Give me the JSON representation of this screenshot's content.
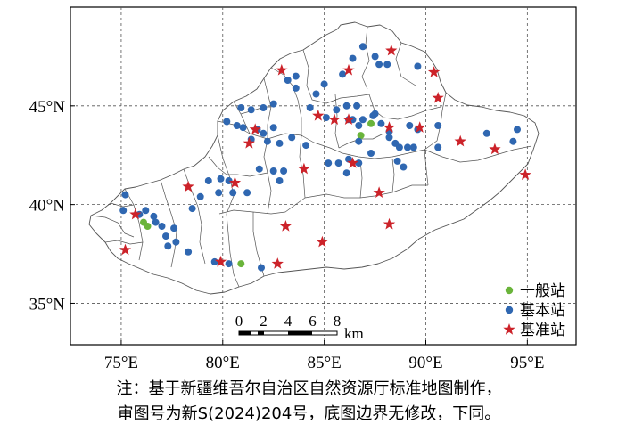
{
  "legend": {
    "general": {
      "label": "一般站",
      "color": "#6ab43a"
    },
    "basic": {
      "label": "基本站",
      "color": "#2f67b1"
    },
    "reference": {
      "label": "基准站",
      "color": "#cc2229"
    }
  },
  "scale_bar": {
    "ticks": [
      "0",
      "2",
      "4",
      "6",
      "8"
    ],
    "unit": "km"
  },
  "x_ticks": [
    {
      "value": 75,
      "label": "75°E"
    },
    {
      "value": 80,
      "label": "80°E"
    },
    {
      "value": 85,
      "label": "85°E"
    },
    {
      "value": 90,
      "label": "90°E"
    },
    {
      "value": 95,
      "label": "95°E"
    }
  ],
  "y_ticks": [
    {
      "value": 45,
      "label": "45°N"
    },
    {
      "value": 40,
      "label": "40°N"
    },
    {
      "value": 35,
      "label": "35°N"
    }
  ],
  "extent": {
    "lon": [
      72.5,
      97.4
    ],
    "lat": [
      32.9,
      50.0
    ]
  },
  "note": {
    "line1": "注：基于新疆维吾尔自治区自然资源厅标准地图制作，",
    "line2": "审图号为新S(2024)204号，底图边界无修改，下同。"
  },
  "stations": {
    "general": [
      [
        76.1,
        39.1
      ],
      [
        76.3,
        38.9
      ],
      [
        80.9,
        37.0
      ],
      [
        86.8,
        43.5
      ],
      [
        87.3,
        44.1
      ]
    ],
    "basic": [
      [
        75.2,
        40.5
      ],
      [
        75.1,
        39.7
      ],
      [
        75.9,
        39.5
      ],
      [
        76.2,
        39.7
      ],
      [
        76.6,
        39.4
      ],
      [
        76.7,
        39.1
      ],
      [
        77.0,
        38.9
      ],
      [
        77.2,
        38.4
      ],
      [
        77.3,
        37.9
      ],
      [
        77.7,
        38.1
      ],
      [
        77.6,
        38.8
      ],
      [
        78.3,
        37.6
      ],
      [
        78.5,
        39.8
      ],
      [
        78.9,
        40.4
      ],
      [
        79.3,
        41.2
      ],
      [
        79.8,
        40.6
      ],
      [
        79.9,
        41.3
      ],
      [
        80.5,
        40.6
      ],
      [
        80.3,
        41.2
      ],
      [
        81.2,
        40.6
      ],
      [
        79.6,
        37.1
      ],
      [
        80.3,
        37.0
      ],
      [
        81.9,
        36.8
      ],
      [
        80.2,
        44.2
      ],
      [
        80.7,
        44.0
      ],
      [
        81.0,
        43.9
      ],
      [
        80.9,
        44.9
      ],
      [
        81.4,
        44.8
      ],
      [
        82.0,
        44.9
      ],
      [
        82.5,
        45.1
      ],
      [
        83.2,
        46.3
      ],
      [
        83.6,
        46.5
      ],
      [
        83.6,
        45.9
      ],
      [
        84.3,
        44.9
      ],
      [
        84.6,
        45.6
      ],
      [
        85.0,
        46.1
      ],
      [
        81.4,
        43.3
      ],
      [
        81.7,
        43.8
      ],
      [
        82.0,
        43.6
      ],
      [
        82.5,
        43.9
      ],
      [
        82.2,
        43.2
      ],
      [
        82.8,
        43.1
      ],
      [
        83.4,
        43.4
      ],
      [
        84.1,
        43.0
      ],
      [
        81.8,
        41.8
      ],
      [
        82.5,
        41.7
      ],
      [
        82.8,
        41.2
      ],
      [
        83.0,
        41.7
      ],
      [
        85.1,
        44.4
      ],
      [
        85.6,
        44.8
      ],
      [
        86.2,
        44.3
      ],
      [
        86.4,
        44.3
      ],
      [
        86.1,
        45.0
      ],
      [
        86.6,
        45.0
      ],
      [
        85.9,
        46.6
      ],
      [
        86.4,
        47.4
      ],
      [
        86.9,
        48.0
      ],
      [
        87.5,
        47.5
      ],
      [
        87.7,
        47.1
      ],
      [
        88.1,
        47.1
      ],
      [
        89.6,
        47.0
      ],
      [
        86.7,
        44.0
      ],
      [
        86.9,
        44.3
      ],
      [
        87.4,
        44.5
      ],
      [
        87.8,
        44.1
      ],
      [
        88.2,
        43.7
      ],
      [
        88.2,
        43.4
      ],
      [
        88.7,
        42.9
      ],
      [
        88.5,
        43.1
      ],
      [
        86.7,
        43.2
      ],
      [
        86.2,
        42.3
      ],
      [
        85.7,
        42.1
      ],
      [
        86.1,
        41.6
      ],
      [
        86.7,
        42.1
      ],
      [
        88.6,
        42.2
      ],
      [
        89.1,
        42.9
      ],
      [
        89.4,
        42.9
      ],
      [
        89.6,
        43.8
      ],
      [
        89.2,
        44.0
      ],
      [
        90.6,
        42.9
      ],
      [
        90.6,
        44.0
      ],
      [
        93.0,
        43.6
      ],
      [
        94.3,
        43.2
      ],
      [
        94.5,
        43.8
      ],
      [
        87.5,
        44.6
      ],
      [
        88.9,
        41.9
      ],
      [
        87.3,
        42.6
      ],
      [
        85.2,
        42.1
      ]
    ],
    "reference": [
      [
        75.2,
        37.7
      ],
      [
        75.7,
        39.5
      ],
      [
        78.3,
        40.9
      ],
      [
        80.6,
        41.1
      ],
      [
        79.9,
        37.1
      ],
      [
        82.7,
        37.0
      ],
      [
        83.1,
        38.9
      ],
      [
        84.9,
        38.1
      ],
      [
        88.2,
        39.0
      ],
      [
        86.4,
        42.1
      ],
      [
        87.7,
        40.6
      ],
      [
        81.3,
        43.1
      ],
      [
        81.6,
        43.8
      ],
      [
        84.0,
        41.8
      ],
      [
        84.7,
        44.5
      ],
      [
        85.5,
        44.3
      ],
      [
        86.2,
        44.3
      ],
      [
        88.2,
        43.9
      ],
      [
        89.7,
        43.9
      ],
      [
        91.7,
        43.2
      ],
      [
        93.4,
        42.8
      ],
      [
        94.9,
        41.5
      ],
      [
        82.9,
        46.8
      ],
      [
        86.2,
        46.8
      ],
      [
        88.3,
        47.8
      ],
      [
        90.4,
        46.7
      ],
      [
        90.6,
        45.4
      ]
    ]
  }
}
